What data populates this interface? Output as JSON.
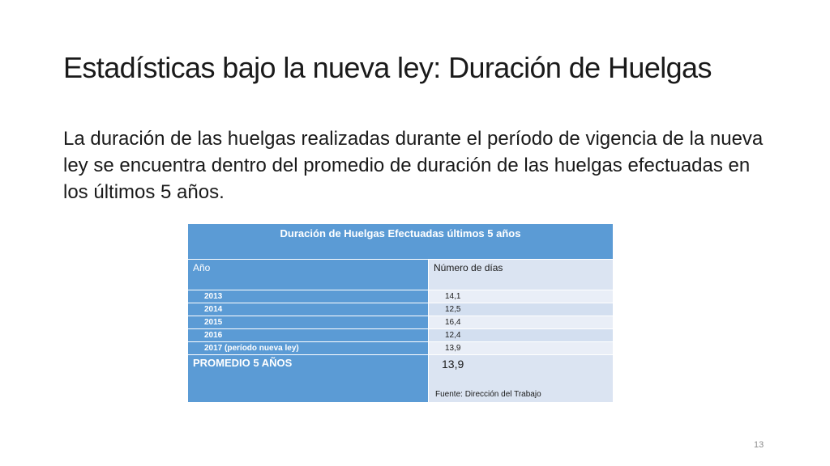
{
  "slide": {
    "title": "Estadísticas bajo la nueva ley: Duración de Huelgas",
    "body": "La duración de las huelgas realizadas durante el período de vigencia de la nueva ley se encuentra dentro del promedio de duración de las huelgas efectuadas en los últimos 5 años.",
    "page_number": "13"
  },
  "table": {
    "caption": "Duración de Huelgas Efectuadas últimos 5 años",
    "col_year_header": "Año",
    "col_days_header": "Número de días",
    "rows": [
      {
        "year": "2013",
        "days": "14,1"
      },
      {
        "year": "2014",
        "days": "12,5"
      },
      {
        "year": "2015",
        "days": "16,4"
      },
      {
        "year": "2016",
        "days": "12,4"
      },
      {
        "year": "2017 (período nueva ley)",
        "days": "13,9"
      }
    ],
    "average_label": "PROMEDIO 5 AÑOS",
    "average_value": "13,9",
    "source": "Fuente: Dirección del Trabajo"
  },
  "colors": {
    "header_blue": "#5b9bd5",
    "light_cell": "#e9eef7",
    "mid_cell": "#d3dff0",
    "text": "#1a1a1a"
  }
}
